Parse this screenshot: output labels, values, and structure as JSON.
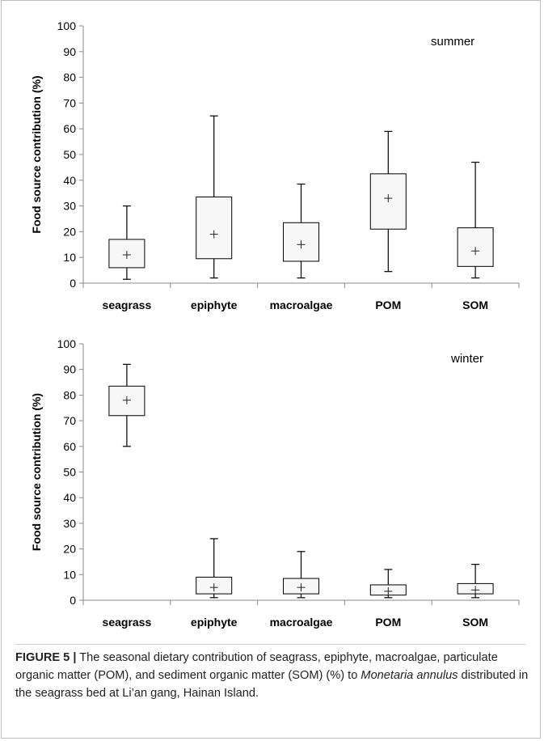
{
  "chart_data": [
    {
      "type": "box",
      "annotation": "summer",
      "ylabel": "Food source contribution (%)",
      "ylim": [
        0,
        100
      ],
      "yticks": [
        0,
        10,
        20,
        30,
        40,
        50,
        60,
        70,
        80,
        90,
        100
      ],
      "categories": [
        "seagrass",
        "epiphyte",
        "macroalgae",
        "POM",
        "SOM"
      ],
      "boxes": [
        {
          "min": 1.5,
          "q1": 6,
          "median": 11,
          "q3": 17,
          "max": 30,
          "mean": 11
        },
        {
          "min": 2,
          "q1": 9.5,
          "median": 19,
          "q3": 33.5,
          "max": 65,
          "mean": 19
        },
        {
          "min": 2,
          "q1": 8.5,
          "median": 15,
          "q3": 23.5,
          "max": 38.5,
          "mean": 15
        },
        {
          "min": 4.5,
          "q1": 21,
          "median": 33,
          "q3": 42.5,
          "max": 59,
          "mean": 33
        },
        {
          "min": 2,
          "q1": 6.5,
          "median": 12.5,
          "q3": 21.5,
          "max": 47,
          "mean": 12.5
        }
      ]
    },
    {
      "type": "box",
      "annotation": "winter",
      "ylabel": "Food source contribution (%)",
      "ylim": [
        0,
        100
      ],
      "yticks": [
        0,
        10,
        20,
        30,
        40,
        50,
        60,
        70,
        80,
        90,
        100
      ],
      "categories": [
        "seagrass",
        "epiphyte",
        "macroalgae",
        "POM",
        "SOM"
      ],
      "boxes": [
        {
          "min": 60,
          "q1": 72,
          "median": 78,
          "q3": 83.5,
          "max": 92,
          "mean": 78
        },
        {
          "min": 1,
          "q1": 2.5,
          "median": 5,
          "q3": 9,
          "max": 24,
          "mean": 5
        },
        {
          "min": 1,
          "q1": 2.5,
          "median": 5,
          "q3": 8.5,
          "max": 19,
          "mean": 5
        },
        {
          "min": 1,
          "q1": 2,
          "median": 3.5,
          "q3": 6,
          "max": 12,
          "mean": 3.5
        },
        {
          "min": 1,
          "q1": 2.5,
          "median": 4,
          "q3": 6.5,
          "max": 14,
          "mean": 4
        }
      ]
    }
  ],
  "caption": {
    "label": "FIGURE 5 |",
    "text_before": " The seasonal dietary contribution of seagrass, epiphyte, macroalgae, particulate organic matter (POM), and sediment organic matter (SOM) (%) to ",
    "species": "Monetaria annulus",
    "text_after": " distributed in the seagrass bed at Li’an gang, Hainan Island."
  }
}
